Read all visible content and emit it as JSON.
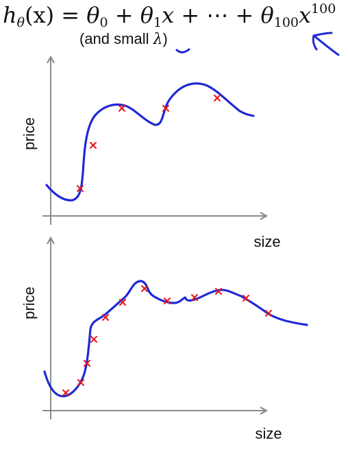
{
  "equation": {
    "lhs": "h",
    "lhs_sub": "θ",
    "lhs_arg": "(x) = ",
    "t0": "θ",
    "t0_sub": "0",
    "plus1": " + ",
    "t1": "θ",
    "t1_sub": "1",
    "t1_var": "x",
    "ellipsis": " + ⋯ + ",
    "tn": "θ",
    "tn_sub": "100",
    "tn_var": "x",
    "tn_pow": "100"
  },
  "note": {
    "prefix": "(and small ",
    "lambda": "λ",
    "suffix": ")"
  },
  "plots": [
    {
      "ylabel": "price",
      "xlabel": "size"
    },
    {
      "ylabel": "price",
      "xlabel": "size"
    }
  ],
  "colors": {
    "curve": "#1f28d6",
    "marker": "#e8141c",
    "axis": "#8c8c8c",
    "ink": "#1f28d6"
  }
}
